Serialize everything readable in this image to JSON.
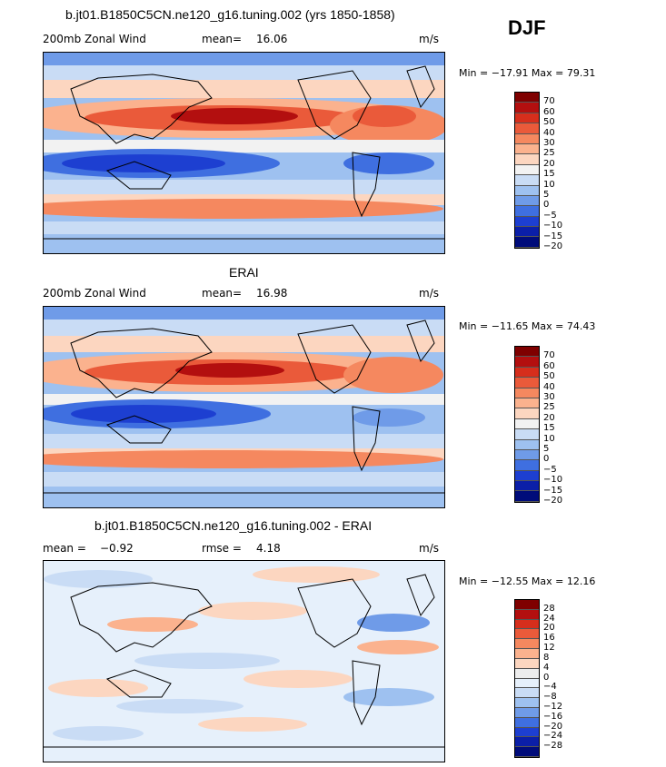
{
  "season": "DJF",
  "panels": [
    {
      "title": "b.jt01.B1850C5CN.ne120_g16.tuning.002 (yrs 1850-1858)",
      "left_label": "200mb Zonal Wind",
      "stat_label": "mean=",
      "stat_value": "16.06",
      "stat2_label": "",
      "stat2_value": "",
      "units": "m/s",
      "minmax": "Min = −17.91 Max =  79.31",
      "levels": [
        "70",
        "60",
        "50",
        "40",
        "30",
        "25",
        "20",
        "15",
        "10",
        "5",
        "0",
        "−5",
        "−10",
        "−15",
        "−20"
      ]
    },
    {
      "title": "ERAI",
      "left_label": "200mb Zonal Wind",
      "stat_label": "mean=",
      "stat_value": "16.98",
      "stat2_label": "",
      "stat2_value": "",
      "units": "m/s",
      "minmax": "Min = −11.65 Max =  74.43",
      "levels": [
        "70",
        "60",
        "50",
        "40",
        "30",
        "25",
        "20",
        "15",
        "10",
        "5",
        "0",
        "−5",
        "−10",
        "−15",
        "−20"
      ]
    },
    {
      "title": "b.jt01.B1850C5CN.ne120_g16.tuning.002 - ERAI",
      "left_label": "mean =",
      "stat_label": "",
      "stat_value": "−0.92",
      "stat2_label": "rmse =",
      "stat2_value": "4.18",
      "units": "m/s",
      "minmax": "Min = −12.55 Max =  12.16",
      "levels": [
        "28",
        "24",
        "20",
        "16",
        "12",
        "8",
        "4",
        "0",
        "−4",
        "−8",
        "−12",
        "−16",
        "−20",
        "−24",
        "−28"
      ]
    }
  ],
  "colors": {
    "wind_scale": [
      "#7f0000",
      "#b30f0f",
      "#d62e1c",
      "#ea5a3a",
      "#f5885f",
      "#fbb28e",
      "#fcd6c0",
      "#f2f2f2",
      "#c9dcf5",
      "#9ec1f0",
      "#6f9be8",
      "#3f6fe0",
      "#1d3fd1",
      "#0b1fa8",
      "#000c7a"
    ],
    "diff_scale": [
      "#7f0000",
      "#b30f0f",
      "#d62e1c",
      "#ea5a3a",
      "#f5885f",
      "#fbb28e",
      "#fcd6c0",
      "#ededed",
      "#e6f0fb",
      "#c9dcf5",
      "#9ec1f0",
      "#6f9be8",
      "#3f6fe0",
      "#1d3fd1",
      "#0b1fa8",
      "#000c7a"
    ]
  }
}
